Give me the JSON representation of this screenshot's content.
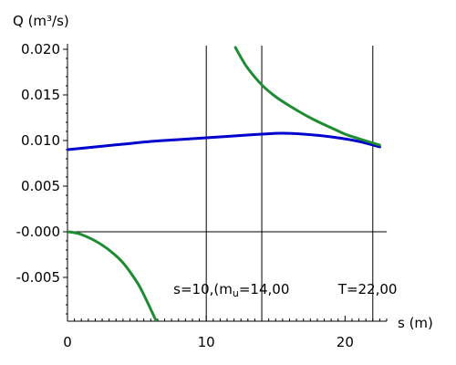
{
  "chart_data": {
    "type": "line",
    "xlabel": "s (m)",
    "ylabel": "Q (m³/s)",
    "xlim": [
      0,
      23
    ],
    "ylim": [
      -0.0098,
      0.0204
    ],
    "grid": false,
    "x_ticks": [
      {
        "value": 0,
        "label": "0"
      },
      {
        "value": 10,
        "label": "10"
      },
      {
        "value": 20,
        "label": "20"
      }
    ],
    "y_ticks": [
      {
        "value": 0.02,
        "label": "0.020"
      },
      {
        "value": 0.015,
        "label": "0.015"
      },
      {
        "value": 0.01,
        "label": "0.010"
      },
      {
        "value": 0.005,
        "label": "0.005"
      },
      {
        "value": 0.0,
        "label": "-0.000"
      },
      {
        "value": -0.005,
        "label": "-0.005"
      }
    ],
    "vertical_lines": [
      {
        "x": 10,
        "label": "s=10,(m",
        "label_sub": "u",
        "label_rest": "=14,00"
      },
      {
        "x": 14,
        "label": ""
      },
      {
        "x": 22,
        "label": "T=22,00"
      }
    ],
    "series": [
      {
        "color": "#0000cc",
        "x": [
          0,
          2,
          4,
          6,
          8,
          10,
          12,
          14,
          15.5,
          17,
          19,
          21,
          22.5
        ],
        "y": [
          0.009,
          0.0093,
          0.0096,
          0.0099,
          0.0101,
          0.0103,
          0.0105,
          0.0107,
          0.0108,
          0.0107,
          0.0104,
          0.0099,
          0.0093
        ]
      },
      {
        "color": "#1e8c32",
        "x": [
          12.1,
          12.5,
          13,
          14,
          15,
          16,
          17,
          18,
          19,
          20,
          21,
          22.5
        ],
        "y": [
          0.0202,
          0.0191,
          0.0179,
          0.0161,
          0.0148,
          0.0138,
          0.0129,
          0.0121,
          0.0114,
          0.0107,
          0.0102,
          0.0095
        ]
      },
      {
        "color": "#1e8c32",
        "x": [
          0,
          0.5,
          1,
          2,
          3,
          4,
          5,
          5.5,
          6,
          6.4
        ],
        "y": [
          0.0,
          -0.0001,
          -0.0003,
          -0.001,
          -0.002,
          -0.0034,
          -0.0055,
          -0.0069,
          -0.0085,
          -0.0098
        ]
      }
    ]
  }
}
